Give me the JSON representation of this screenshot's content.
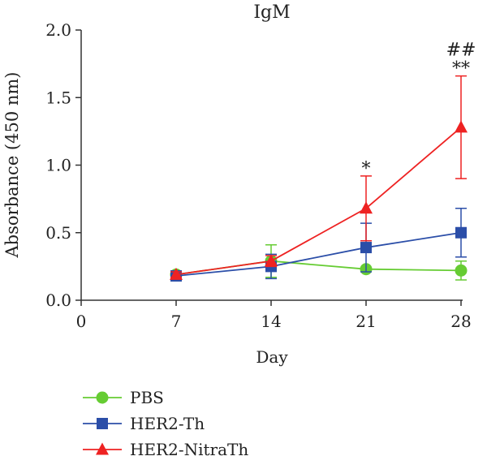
{
  "chart_data": {
    "type": "line",
    "title": "IgM",
    "xlabel": "Day",
    "ylabel": "Absorbance (450 nm)",
    "xlim": [
      0,
      28
    ],
    "ylim": [
      0,
      2.0
    ],
    "x_ticks": [
      0,
      7,
      14,
      21,
      28
    ],
    "y_ticks": [
      "0.0",
      "0.5",
      "1.0",
      "1.5",
      "2.0"
    ],
    "legend_position": "bottom-left",
    "series": [
      {
        "name": "PBS",
        "color": "#66cc33",
        "marker": "circle",
        "x": [
          7,
          14,
          21,
          28
        ],
        "y": [
          0.19,
          0.29,
          0.23,
          0.22
        ],
        "err": [
          0.02,
          0.12,
          0.0,
          0.07
        ]
      },
      {
        "name": "HER2-Th",
        "color": "#2b4ea8",
        "marker": "square",
        "x": [
          7,
          14,
          21,
          28
        ],
        "y": [
          0.18,
          0.25,
          0.39,
          0.5
        ],
        "err": [
          0.0,
          0.09,
          0.18,
          0.18
        ]
      },
      {
        "name": "HER2-NitraTh",
        "color": "#ee2222",
        "marker": "triangle",
        "x": [
          7,
          14,
          21,
          28
        ],
        "y": [
          0.19,
          0.29,
          0.68,
          1.28
        ],
        "err": [
          0.02,
          0.04,
          0.24,
          0.38
        ]
      }
    ],
    "annotations": [
      {
        "x": 21,
        "y": 0.92,
        "text": "*"
      },
      {
        "x": 28,
        "y": 1.66,
        "text": "**"
      },
      {
        "x": 28,
        "y": 1.8,
        "text": "##"
      }
    ]
  }
}
